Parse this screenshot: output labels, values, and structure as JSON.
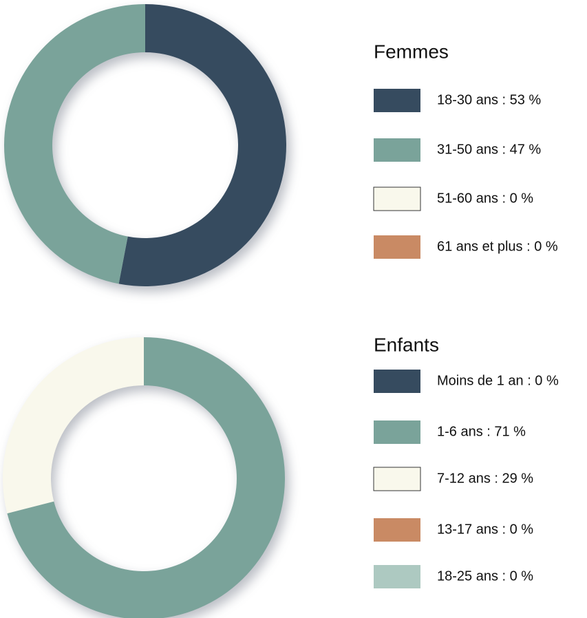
{
  "chart_data": [
    {
      "type": "pie",
      "donut": true,
      "title": "Femmes",
      "categories": [
        "18-30 ans : 53 %",
        "31-50 ans : 47 %",
        "51-60 ans : 0 %",
        "61 ans et plus : 0 %"
      ],
      "values": [
        53,
        47,
        0,
        0
      ],
      "colors": [
        "#364b5f",
        "#7aa39a",
        "#f9f8ec",
        "#c98a64"
      ]
    },
    {
      "type": "pie",
      "donut": true,
      "title": "Enfants",
      "categories": [
        "Moins de 1 an : 0 %",
        "1-6 ans : 71 %",
        "7-12 ans : 29 %",
        "13-17 ans : 0 %",
        "18-25 ans : 0 %"
      ],
      "values": [
        0,
        71,
        29,
        0,
        0
      ],
      "colors": [
        "#364b5f",
        "#7aa39a",
        "#f9f8ec",
        "#c98a64",
        "#adc9c1"
      ]
    }
  ]
}
